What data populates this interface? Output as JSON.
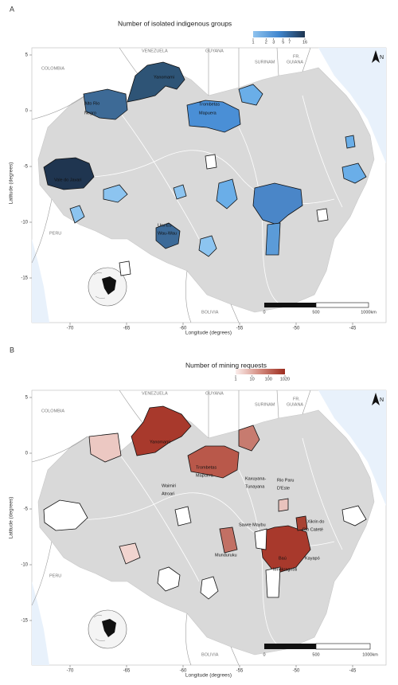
{
  "panels": [
    {
      "label": "A",
      "legend": {
        "title": "Number of isolated indigenous groups",
        "ticks": [
          1,
          2,
          3,
          5,
          7,
          16
        ]
      },
      "countries": [
        "COLOMBIA",
        "VENEZUELA",
        "GUYANA",
        "SURINAM",
        "FR.",
        "GUIANA",
        "PERU",
        "BOLIVIA"
      ],
      "territories": [
        "Yanomami",
        "Alto Rio",
        "Negro",
        "Trombetas",
        "Mapuera",
        "Vale do Javari",
        "Uru-Eu-",
        "Wau-Wau"
      ],
      "xticks": [
        -70,
        -65,
        -60,
        -55,
        -50,
        -45
      ],
      "yticks": [
        5,
        0,
        -5,
        -10,
        -15
      ],
      "xlabel": "Longitude (degrees)",
      "ylabel": "Latitude (degrees)",
      "scale": [
        "0",
        "500",
        "1000km"
      ],
      "north": "N"
    },
    {
      "label": "B",
      "legend": {
        "title": "Number of mining requests",
        "ticks": [
          1,
          10,
          100,
          1020
        ]
      },
      "countries": [
        "COLOMBIA",
        "VENEZUELA",
        "GUYANA",
        "SURINAM",
        "FR.",
        "GUIANA",
        "PERU",
        "BOLIVIA"
      ],
      "territories": [
        "Yanomami",
        "Trombetas",
        "Mapuera",
        "Kaxuyana-",
        "Tunayana",
        "Waimiri",
        "Atroari",
        "Rio Paru",
        "D'Este",
        "Sawre Maybu",
        "Xikrin do",
        "Rio Cateté",
        "Munduruku",
        "Baú",
        "Kayapó",
        "Menkragnoti"
      ],
      "xticks": [
        -70,
        -65,
        -60,
        -55,
        -50,
        -45
      ],
      "yticks": [
        5,
        0,
        -5,
        -10,
        -15
      ],
      "xlabel": "Longitude (degrees)",
      "ylabel": "Latitude (degrees)",
      "scale": [
        "0",
        "500",
        "1000km"
      ],
      "north": "N"
    }
  ]
}
